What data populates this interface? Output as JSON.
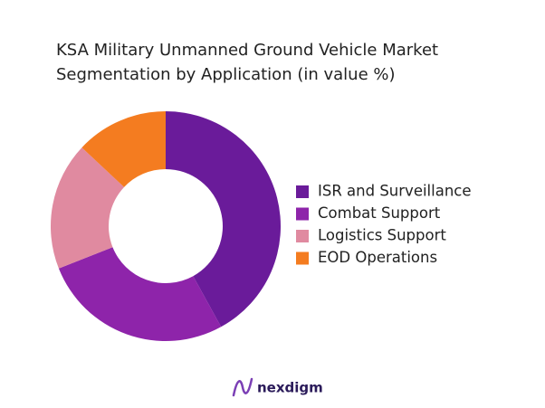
{
  "chart_data": {
    "type": "donut",
    "title_lines": [
      "KSA Military Unmanned Ground Vehicle Market",
      "Segmentation by Application (in value %)"
    ],
    "categories": [
      "ISR and Surveillance",
      "Combat Support",
      "Logistics Support",
      "EOD Operations"
    ],
    "values": [
      42,
      27,
      18,
      13
    ],
    "colors": [
      "#6a1b9a",
      "#8e24aa",
      "#e08aa0",
      "#f47c20"
    ],
    "legend": "right"
  },
  "brand": "nexdigm"
}
